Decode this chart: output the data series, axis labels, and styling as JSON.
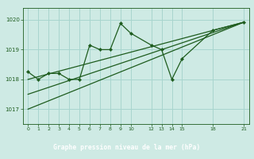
{
  "title": "Graphe pression niveau de la mer (hPa)",
  "bg_color": "#ceeae4",
  "footer_color": "#2d6e2d",
  "line_color": "#1e5c1e",
  "grid_color": "#a8d5ce",
  "x_ticks": [
    0,
    1,
    2,
    3,
    4,
    5,
    6,
    7,
    8,
    9,
    10,
    12,
    13,
    14,
    15,
    18,
    21
  ],
  "ylim": [
    1016.5,
    1020.4
  ],
  "yticks": [
    1017,
    1018,
    1019,
    1020
  ],
  "xlim": [
    -0.5,
    21.5
  ],
  "series1_x": [
    0,
    1,
    2,
    3,
    4,
    5,
    6,
    7,
    8,
    9,
    10,
    12,
    13,
    14,
    15,
    18,
    21
  ],
  "series1_y": [
    1018.25,
    1018.0,
    1018.2,
    1018.2,
    1018.0,
    1018.0,
    1019.15,
    1019.0,
    1019.0,
    1019.88,
    1019.55,
    1019.15,
    1019.0,
    1018.0,
    1018.7,
    1019.65,
    1019.92
  ],
  "series2_x": [
    0,
    21
  ],
  "series2_y": [
    1017.0,
    1019.92
  ],
  "series3_x": [
    0,
    21
  ],
  "series3_y": [
    1017.5,
    1019.92
  ],
  "series4_x": [
    0,
    21
  ],
  "series4_y": [
    1018.0,
    1019.92
  ]
}
